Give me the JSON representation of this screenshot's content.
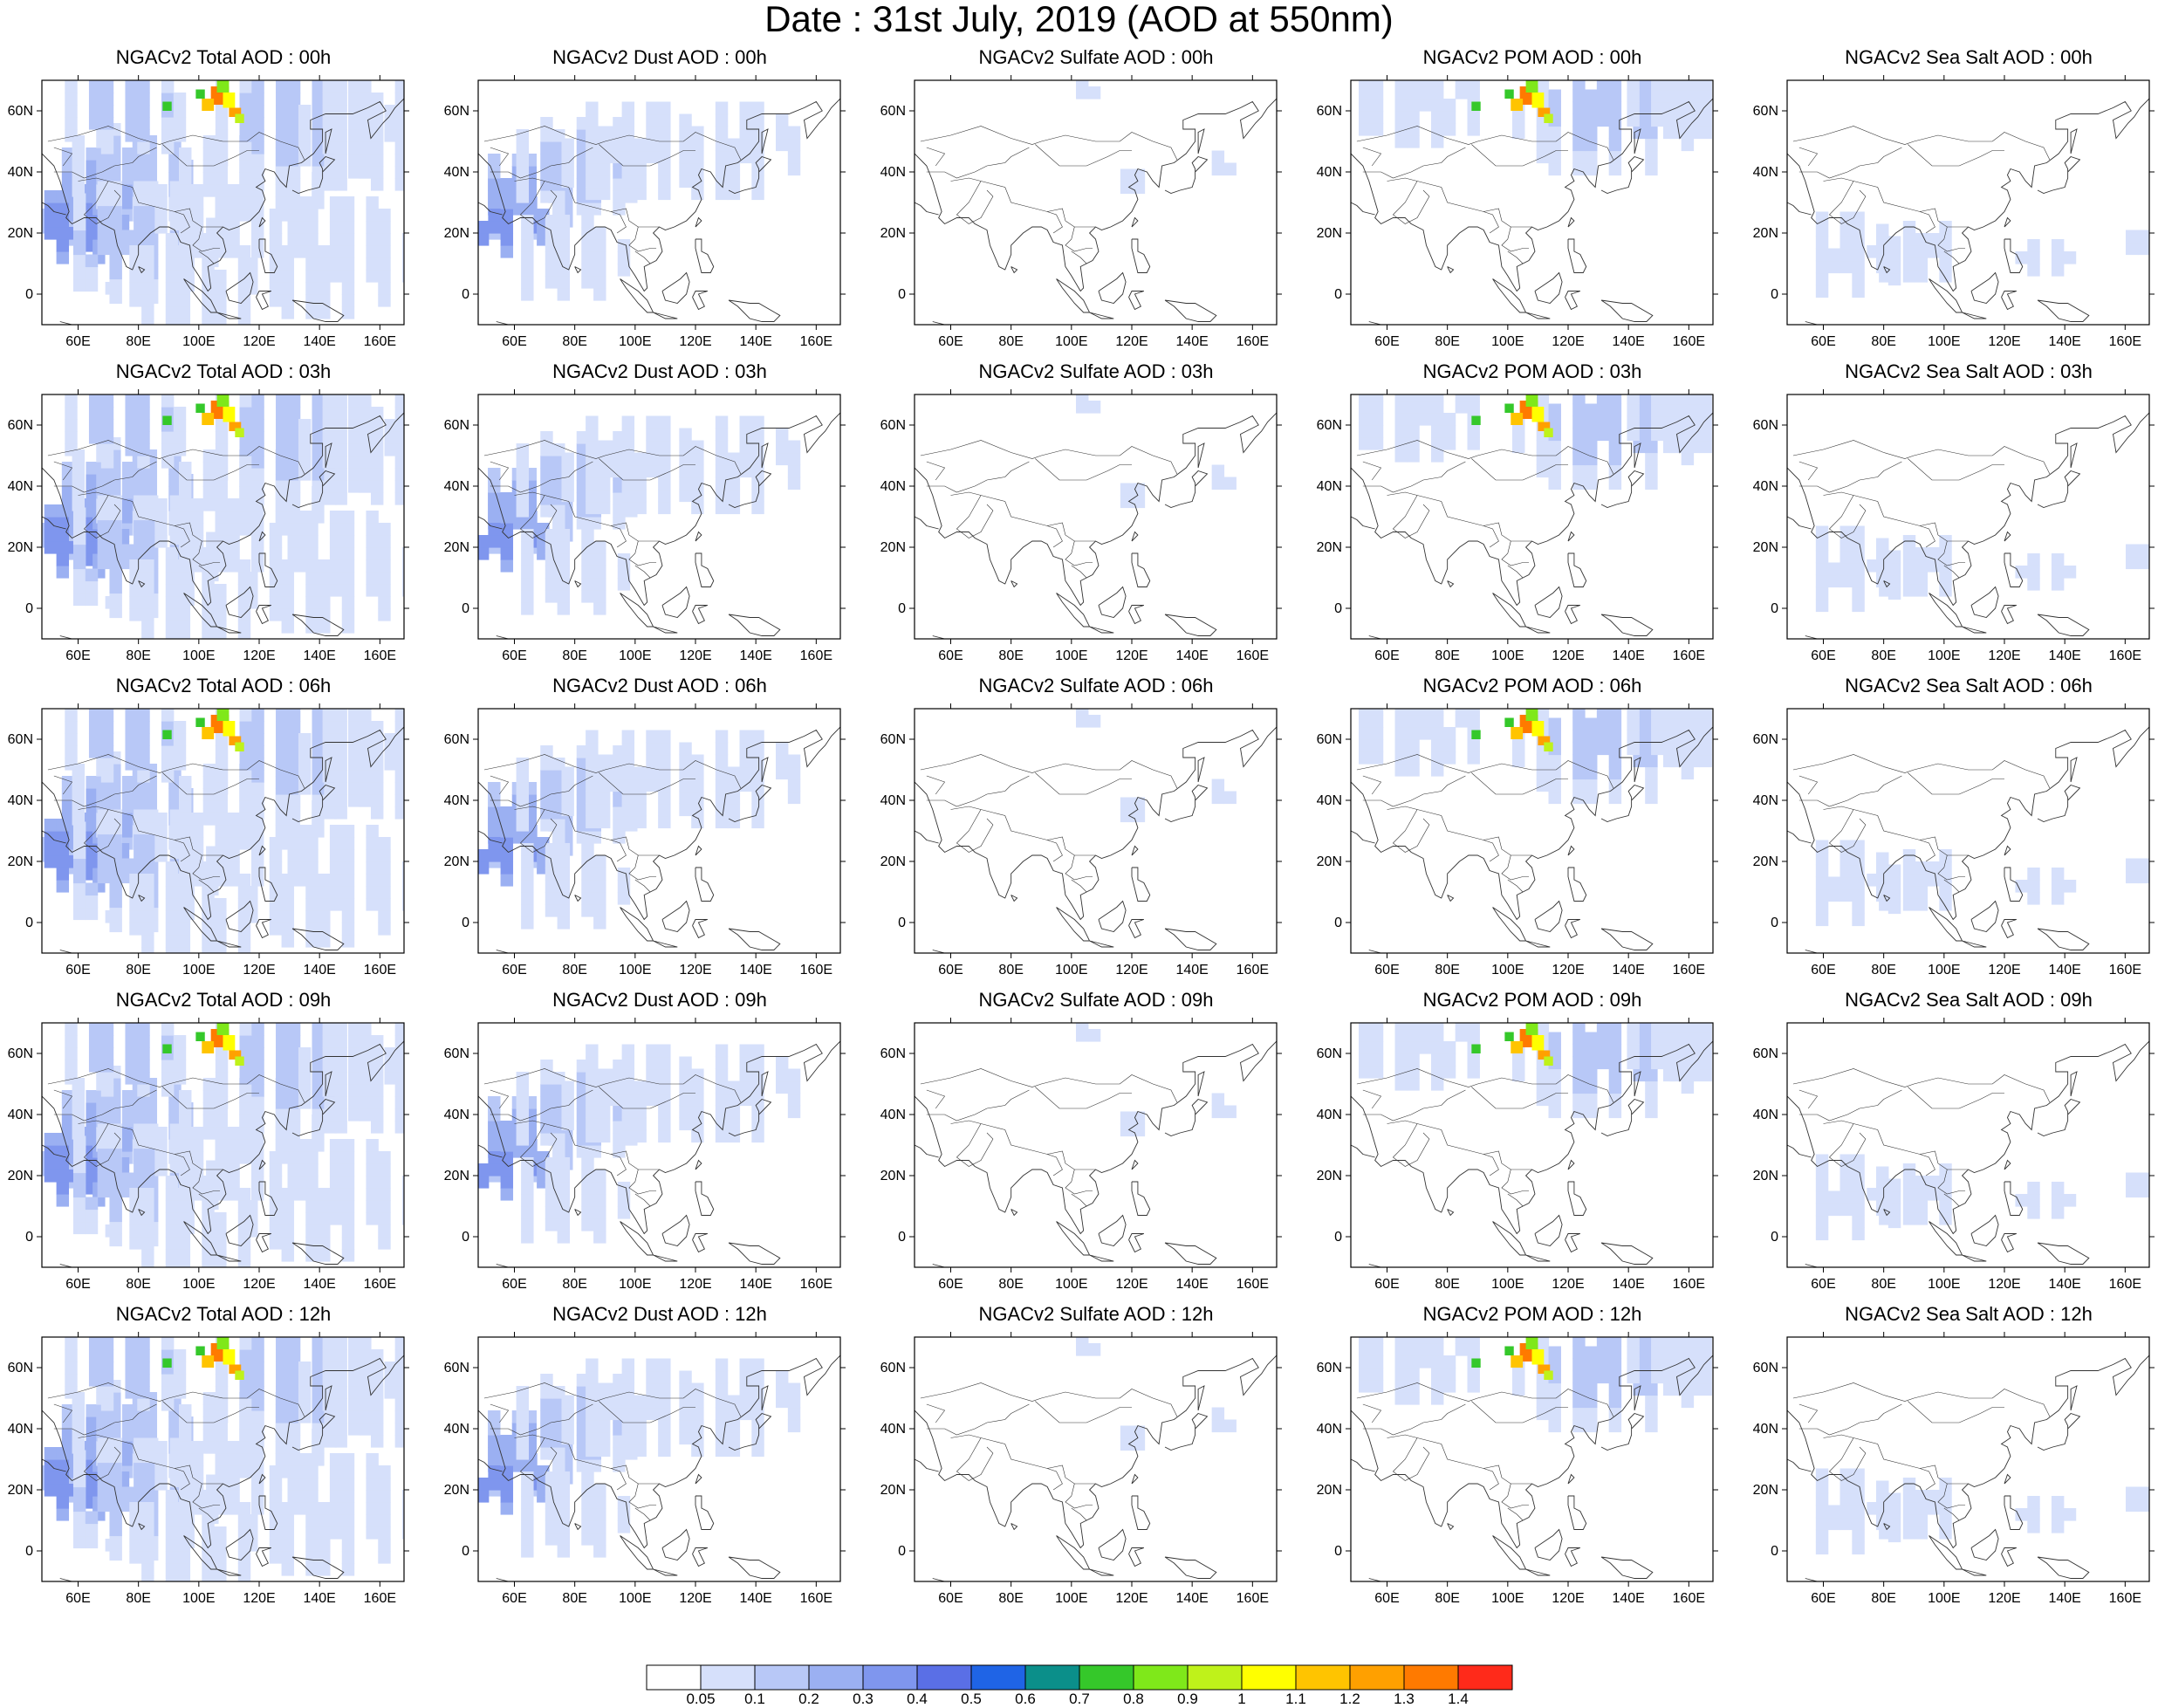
{
  "title": "Date : 31st July, 2019 (AOD at 550nm)",
  "panel_titles": [
    [
      "NGACv2 Total AOD : 00h",
      "NGACv2 Dust AOD : 00h",
      "NGACv2 Sulfate AOD : 00h",
      "NGACv2 POM AOD : 00h",
      "NGACv2 Sea Salt AOD : 00h"
    ],
    [
      "NGACv2 Total AOD : 03h",
      "NGACv2 Dust AOD : 03h",
      "NGACv2 Sulfate AOD : 03h",
      "NGACv2 POM AOD : 03h",
      "NGACv2 Sea Salt AOD : 03h"
    ],
    [
      "NGACv2 Total AOD : 06h",
      "NGACv2 Dust AOD : 06h",
      "NGACv2 Sulfate AOD : 06h",
      "NGACv2 POM AOD : 06h",
      "NGACv2 Sea Salt AOD : 06h"
    ],
    [
      "NGACv2 Total AOD : 09h",
      "NGACv2 Dust AOD : 09h",
      "NGACv2 Sulfate AOD : 09h",
      "NGACv2 POM AOD : 09h",
      "NGACv2 Sea Salt  AOD : 09h"
    ],
    [
      "NGACv2 Total AOD  : 12h",
      "NGACv2 Dust AOD : 12h",
      "NGACv2 Sulfate AOD : 12h",
      "NGACv2 POM  AOD : 12h",
      "NGACv2 Sea Salt  AOD : 12h"
    ]
  ],
  "lon_ticks": [
    "60E",
    "80E",
    "100E",
    "120E",
    "140E",
    "160E"
  ],
  "lon_values": [
    60,
    80,
    100,
    120,
    140,
    160
  ],
  "lon_range": [
    48,
    168
  ],
  "lat_ticks": [
    "60N",
    "40N",
    "20N",
    "0"
  ],
  "lat_values": [
    60,
    40,
    20,
    0
  ],
  "lat_range": [
    -10,
    70
  ],
  "colorbar": {
    "labels": [
      "0.05",
      "0.1",
      "0.2",
      "0.3",
      "0.4",
      "0.5",
      "0.6",
      "0.7",
      "0.8",
      "0.9",
      "1",
      "1.1",
      "1.2",
      "1.3",
      "1.4"
    ],
    "colors": [
      "#ffffff",
      "#d6e0fb",
      "#b8c8f7",
      "#9bb0f2",
      "#7f96ee",
      "#5a6fe6",
      "#1f64e6",
      "#0b8f8a",
      "#35c82a",
      "#7fe81a",
      "#bff21a",
      "#ffff00",
      "#ffc400",
      "#ffa000",
      "#ff7a00",
      "#ff2a1a"
    ]
  },
  "fields": {
    "total": {
      "blobs": [
        {
          "lon": 62,
          "lat": 30,
          "r": 18,
          "level": 3
        },
        {
          "lon": 55,
          "lat": 20,
          "r": 14,
          "level": 4
        },
        {
          "lon": 80,
          "lat": 40,
          "r": 20,
          "level": 2
        },
        {
          "lon": 75,
          "lat": 15,
          "r": 22,
          "level": 2
        },
        {
          "lon": 110,
          "lat": 30,
          "r": 22,
          "level": 1
        },
        {
          "lon": 130,
          "lat": 55,
          "r": 25,
          "level": 2
        },
        {
          "lon": 155,
          "lat": 50,
          "r": 20,
          "level": 1
        },
        {
          "lon": 95,
          "lat": 0,
          "r": 20,
          "level": 1
        },
        {
          "lon": 140,
          "lat": 10,
          "r": 22,
          "level": 1
        },
        {
          "lon": 75,
          "lat": 60,
          "r": 18,
          "level": 2
        }
      ],
      "hotspot": true
    },
    "dust": {
      "blobs": [
        {
          "lon": 60,
          "lat": 30,
          "r": 16,
          "level": 3
        },
        {
          "lon": 55,
          "lat": 20,
          "r": 12,
          "level": 4
        },
        {
          "lon": 80,
          "lat": 40,
          "r": 18,
          "level": 2
        },
        {
          "lon": 95,
          "lat": 45,
          "r": 18,
          "level": 1
        },
        {
          "lon": 130,
          "lat": 45,
          "r": 18,
          "level": 1
        },
        {
          "lon": 75,
          "lat": 10,
          "r": 16,
          "level": 1
        }
      ],
      "hotspot": false
    },
    "sulfate": {
      "blobs": [
        {
          "lon": 120,
          "lat": 35,
          "r": 6,
          "level": 1
        },
        {
          "lon": 100,
          "lat": 65,
          "r": 5,
          "level": 1
        },
        {
          "lon": 145,
          "lat": 40,
          "r": 5,
          "level": 1
        }
      ],
      "hotspot": false
    },
    "pom": {
      "blobs": [
        {
          "lon": 130,
          "lat": 60,
          "r": 25,
          "level": 2
        },
        {
          "lon": 70,
          "lat": 62,
          "r": 18,
          "level": 1
        },
        {
          "lon": 155,
          "lat": 62,
          "r": 15,
          "level": 1
        }
      ],
      "hotspot": true
    },
    "seasalt": {
      "blobs": [
        {
          "lon": 65,
          "lat": 10,
          "r": 15,
          "level": 1
        },
        {
          "lon": 90,
          "lat": 12,
          "r": 12,
          "level": 1
        },
        {
          "lon": 130,
          "lat": 10,
          "r": 8,
          "level": 1
        },
        {
          "lon": 160,
          "lat": 15,
          "r": 6,
          "level": 1
        }
      ],
      "hotspot": false
    }
  },
  "field_order": [
    "total",
    "dust",
    "sulfate",
    "pom",
    "seasalt"
  ]
}
